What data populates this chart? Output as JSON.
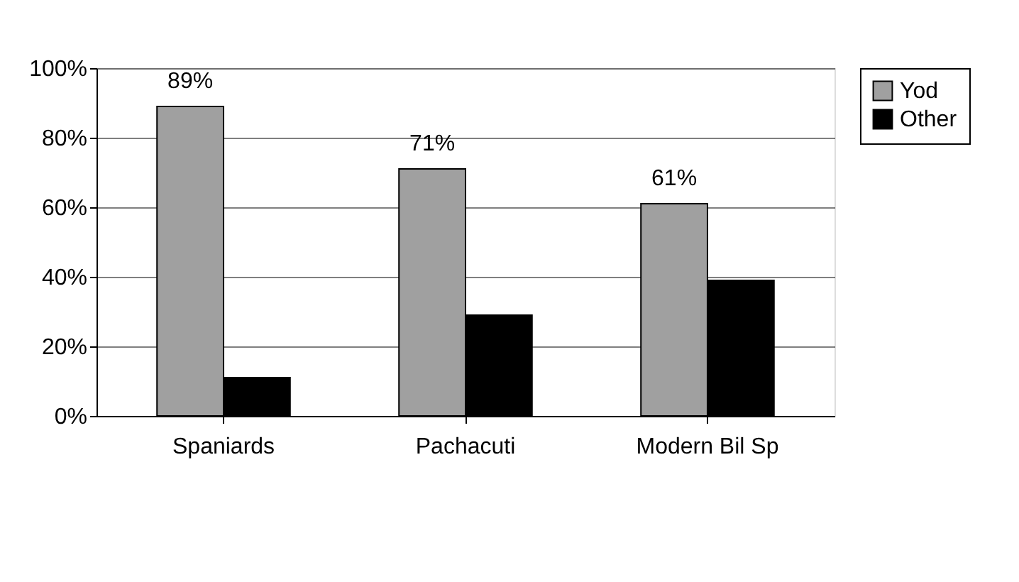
{
  "chart_data": {
    "type": "bar",
    "categories": [
      "Spaniards",
      "Pachacuti",
      "Modern Bil Sp"
    ],
    "series": [
      {
        "name": "Yod",
        "color": "#a0a0a0",
        "values": [
          89,
          71,
          61
        ],
        "value_labels": [
          "89%",
          "71%",
          "61%"
        ]
      },
      {
        "name": "Other",
        "color": "#000000",
        "values": [
          11,
          29,
          39
        ]
      }
    ],
    "ylim": [
      0,
      100
    ],
    "yticks": [
      {
        "value": 0,
        "label": "0%"
      },
      {
        "value": 20,
        "label": "20%"
      },
      {
        "value": 40,
        "label": "40%"
      },
      {
        "value": 60,
        "label": "60%"
      },
      {
        "value": 80,
        "label": "80%"
      },
      {
        "value": 100,
        "label": "100%"
      }
    ],
    "grid": "y",
    "legend": "right"
  }
}
